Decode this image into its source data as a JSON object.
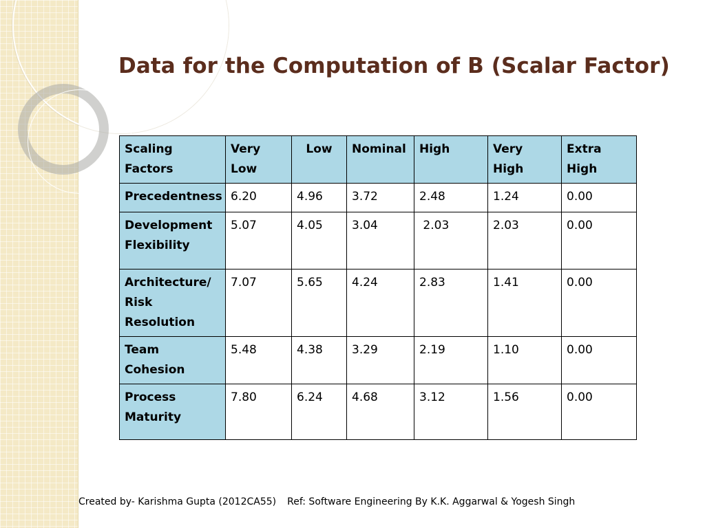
{
  "slide": {
    "title": "Data for the Computation of B (Scalar Factor)"
  },
  "table": {
    "headers": [
      "Scaling Factors",
      "Very Low",
      "Low",
      "Nominal",
      "High",
      "Very High",
      "Extra High"
    ],
    "rows": [
      {
        "factor": "Precedentness",
        "values": [
          "6.20",
          "4.96",
          "3.72",
          "2.48",
          "1.24",
          "0.00"
        ]
      },
      {
        "factor": "Development Flexibility",
        "values": [
          "5.07",
          "4.05",
          "3.04",
          " 2.03",
          "2.03",
          "0.00"
        ]
      },
      {
        "factor": "Architecture/ Risk Resolution",
        "values": [
          "7.07",
          "5.65",
          "4.24",
          "2.83",
          "1.41",
          "0.00"
        ]
      },
      {
        "factor": "Team Cohesion",
        "values": [
          "5.48",
          "4.38",
          "3.29",
          "2.19",
          "1.10",
          "0.00"
        ]
      },
      {
        "factor": "Process Maturity",
        "values": [
          "7.80",
          "6.24",
          "4.68",
          "3.12",
          "1.56",
          "0.00"
        ]
      }
    ]
  },
  "footer": {
    "created_by": "Created by- Karishma Gupta (2012CA55)",
    "reference": "Ref:  Software Engineering By K.K. Aggarwal & Yogesh Singh"
  },
  "colors": {
    "title": "#5b2d1d",
    "header_fill": "#add8e6",
    "side_band": "#f4e9c6"
  }
}
